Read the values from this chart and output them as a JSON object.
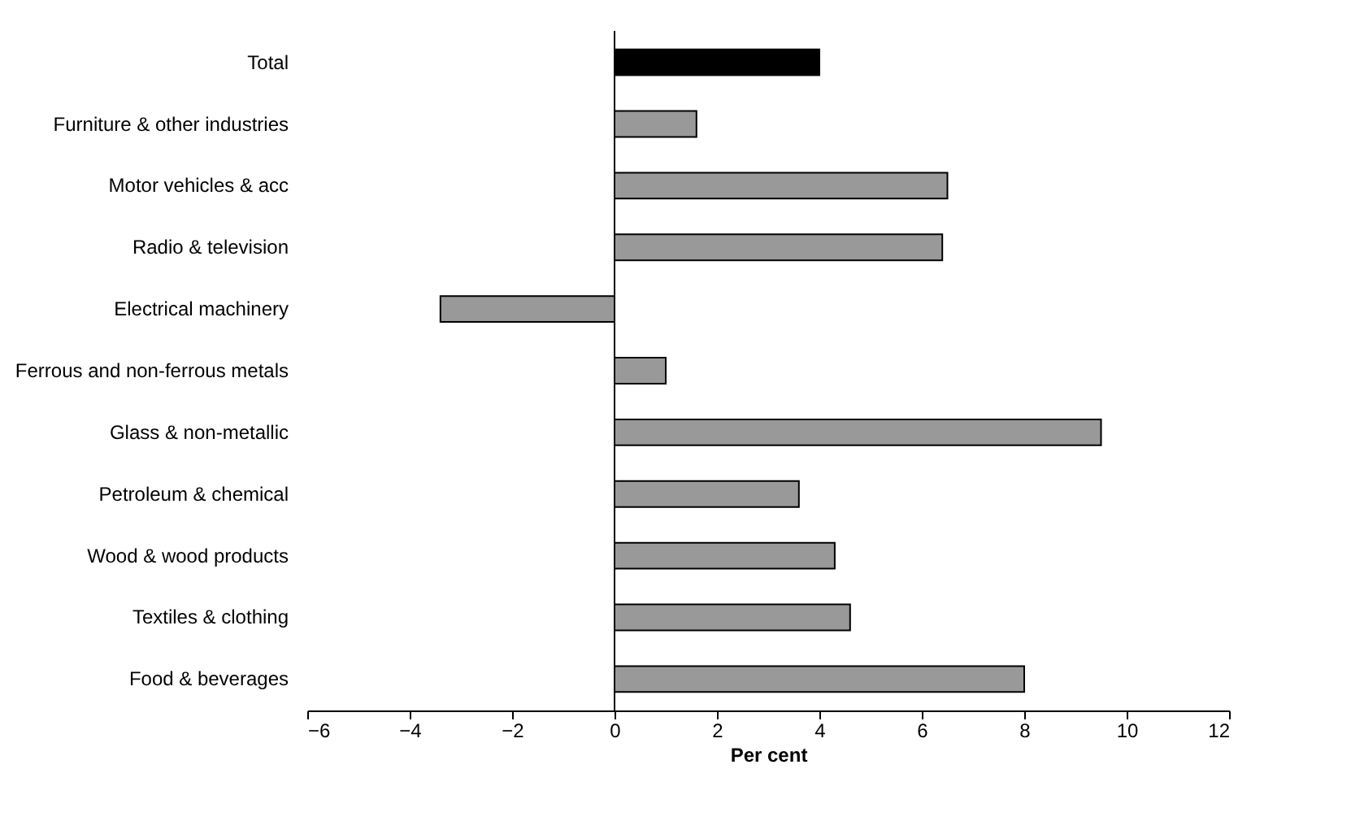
{
  "chart_data": {
    "type": "bar",
    "orientation": "horizontal",
    "xlabel": "Per cent",
    "categories": [
      "Total",
      "Furniture & other industries",
      "Motor vehicles & acc",
      "Radio & television",
      "Electrical machinery",
      "Ferrous and non-ferrous metals",
      "Glass & non-metallic",
      "Petroleum & chemical",
      "Wood & wood products",
      "Textiles & clothing",
      "Food & beverages"
    ],
    "values": [
      4.0,
      1.6,
      6.5,
      6.4,
      -3.4,
      1.0,
      9.5,
      3.6,
      4.3,
      4.6,
      8.0
    ],
    "colors": [
      "#000000",
      "#999999",
      "#999999",
      "#999999",
      "#999999",
      "#999999",
      "#999999",
      "#999999",
      "#999999",
      "#999999",
      "#999999"
    ],
    "xlim": [
      -6,
      12
    ],
    "xticks": [
      -6,
      -4,
      -2,
      0,
      2,
      4,
      6,
      8,
      10,
      12
    ],
    "grid": false,
    "legend": false,
    "ref_lines": [
      {
        "axis": "x",
        "value": 0,
        "color": "#000000"
      }
    ]
  }
}
